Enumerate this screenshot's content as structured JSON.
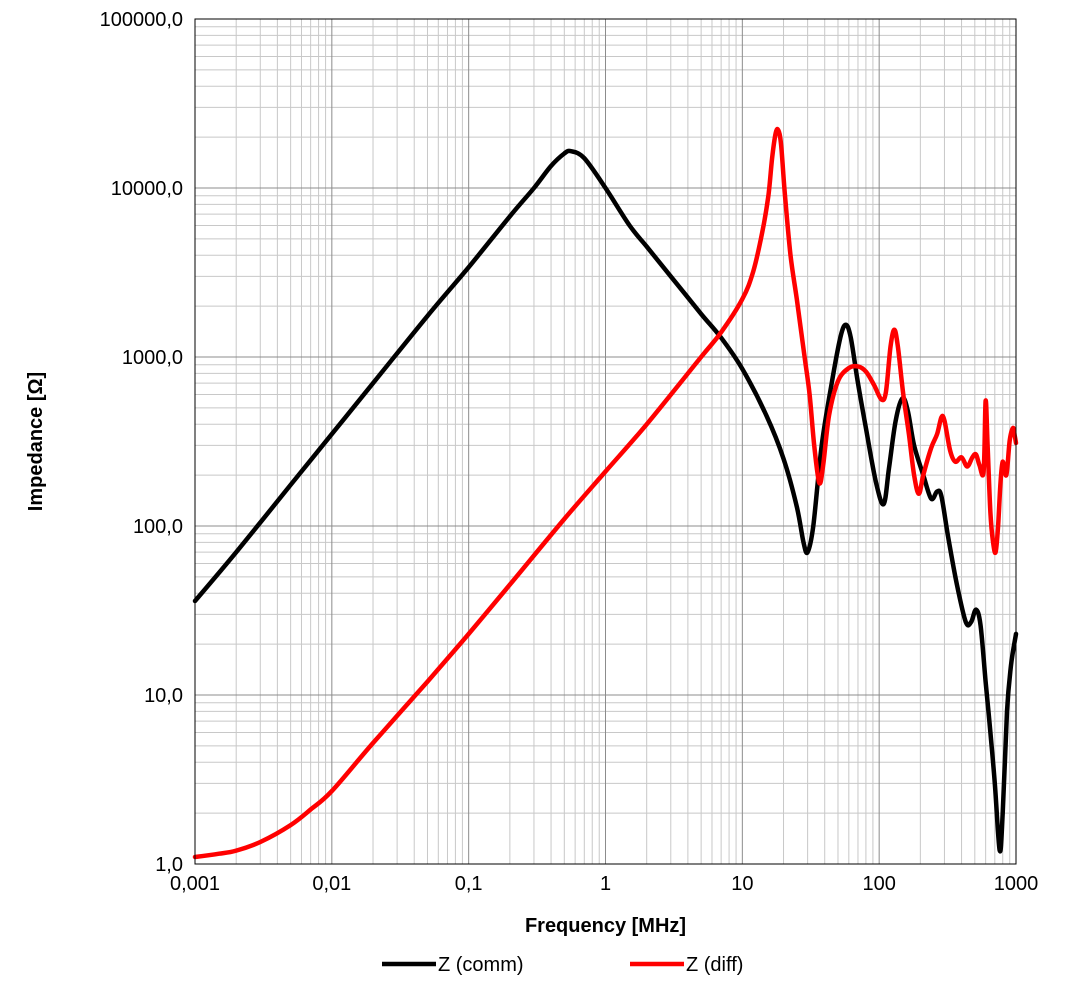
{
  "chart_data": {
    "type": "line",
    "xlabel": "Frequency  [MHz]",
    "ylabel": "Impedance [Ω]",
    "x_scale": "log",
    "y_scale": "log",
    "xlim": [
      0.001,
      1000
    ],
    "ylim": [
      1,
      100000
    ],
    "grid": true,
    "legend_position": "bottom",
    "x_tick_labels": [
      "0,001",
      "0,01",
      "0,1",
      "1",
      "10",
      "100",
      "1000"
    ],
    "y_tick_labels": [
      "1,0",
      "10,0",
      "100,0",
      "1000,0",
      "10000,0",
      "100000,0"
    ],
    "series": [
      {
        "name": "Z  (comm)",
        "color": "#000000",
        "points": [
          [
            0.001,
            36
          ],
          [
            0.002,
            70
          ],
          [
            0.005,
            175
          ],
          [
            0.01,
            350
          ],
          [
            0.02,
            700
          ],
          [
            0.05,
            1750
          ],
          [
            0.1,
            3400
          ],
          [
            0.2,
            6800
          ],
          [
            0.3,
            10000
          ],
          [
            0.4,
            13500
          ],
          [
            0.5,
            16000
          ],
          [
            0.56,
            16500
          ],
          [
            0.7,
            15000
          ],
          [
            1.0,
            10000
          ],
          [
            1.5,
            6000
          ],
          [
            2,
            4500
          ],
          [
            3,
            3000
          ],
          [
            5,
            1800
          ],
          [
            7,
            1300
          ],
          [
            10,
            850
          ],
          [
            15,
            450
          ],
          [
            20,
            250
          ],
          [
            25,
            130
          ],
          [
            28,
            80
          ],
          [
            30,
            70
          ],
          [
            33,
            100
          ],
          [
            38,
            300
          ],
          [
            45,
            700
          ],
          [
            52,
            1300
          ],
          [
            57,
            1550
          ],
          [
            62,
            1300
          ],
          [
            70,
            700
          ],
          [
            80,
            380
          ],
          [
            95,
            180
          ],
          [
            108,
            135
          ],
          [
            118,
            220
          ],
          [
            132,
            420
          ],
          [
            148,
            570
          ],
          [
            162,
            480
          ],
          [
            180,
            300
          ],
          [
            210,
            200
          ],
          [
            240,
            145
          ],
          [
            265,
            160
          ],
          [
            285,
            150
          ],
          [
            320,
            85
          ],
          [
            370,
            45
          ],
          [
            430,
            27
          ],
          [
            470,
            27
          ],
          [
            510,
            32
          ],
          [
            550,
            26
          ],
          [
            600,
            12
          ],
          [
            650,
            6
          ],
          [
            700,
            3
          ],
          [
            760,
            1.2
          ],
          [
            800,
            2
          ],
          [
            860,
            8
          ],
          [
            920,
            15
          ],
          [
            1000,
            23
          ]
        ]
      },
      {
        "name": "Z (diff)",
        "color": "#ff0000",
        "points": [
          [
            0.001,
            1.1
          ],
          [
            0.0015,
            1.15
          ],
          [
            0.002,
            1.2
          ],
          [
            0.003,
            1.35
          ],
          [
            0.005,
            1.7
          ],
          [
            0.007,
            2.1
          ],
          [
            0.01,
            2.7
          ],
          [
            0.02,
            5.2
          ],
          [
            0.05,
            12
          ],
          [
            0.1,
            23
          ],
          [
            0.2,
            45
          ],
          [
            0.5,
            110
          ],
          [
            1.0,
            210
          ],
          [
            2,
            400
          ],
          [
            5,
            1000
          ],
          [
            7,
            1400
          ],
          [
            10,
            2200
          ],
          [
            12,
            3200
          ],
          [
            14,
            5500
          ],
          [
            15.5,
            9000
          ],
          [
            16.5,
            15000
          ],
          [
            17.5,
            21000
          ],
          [
            18.3,
            22000
          ],
          [
            19.2,
            18000
          ],
          [
            20.5,
            9000
          ],
          [
            22.5,
            4000
          ],
          [
            25,
            2200
          ],
          [
            28.5,
            1000
          ],
          [
            31,
            600
          ],
          [
            33.5,
            300
          ],
          [
            36.5,
            180
          ],
          [
            39,
            230
          ],
          [
            43,
            450
          ],
          [
            50,
            720
          ],
          [
            60,
            860
          ],
          [
            70,
            880
          ],
          [
            80,
            820
          ],
          [
            92,
            680
          ],
          [
            104,
            560
          ],
          [
            112,
            620
          ],
          [
            121,
            1150
          ],
          [
            129,
            1450
          ],
          [
            137,
            1150
          ],
          [
            150,
            600
          ],
          [
            165,
            350
          ],
          [
            180,
            200
          ],
          [
            195,
            155
          ],
          [
            210,
            200
          ],
          [
            240,
            290
          ],
          [
            265,
            350
          ],
          [
            285,
            440
          ],
          [
            300,
            420
          ],
          [
            330,
            280
          ],
          [
            360,
            240
          ],
          [
            400,
            255
          ],
          [
            440,
            225
          ],
          [
            480,
            255
          ],
          [
            510,
            265
          ],
          [
            540,
            230
          ],
          [
            580,
            210
          ],
          [
            600,
            550
          ],
          [
            620,
            300
          ],
          [
            650,
            120
          ],
          [
            680,
            80
          ],
          [
            710,
            70
          ],
          [
            740,
            100
          ],
          [
            770,
            180
          ],
          [
            800,
            240
          ],
          [
            850,
            200
          ],
          [
            900,
            320
          ],
          [
            950,
            380
          ],
          [
            980,
            340
          ],
          [
            1000,
            310
          ]
        ]
      }
    ]
  }
}
